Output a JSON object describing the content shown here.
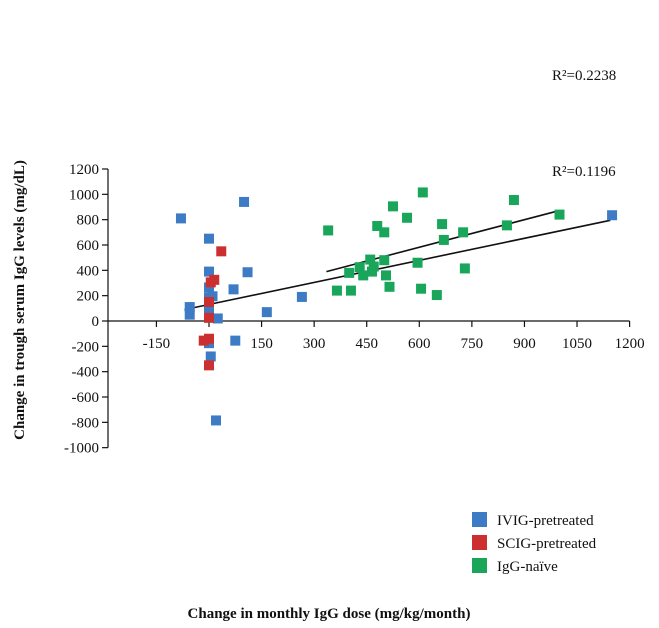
{
  "chart_data": {
    "type": "scatter",
    "xlabel": "Change in monthly IgG dose (mg/kg/month)",
    "ylabel": "Change in trough serum IgG levels (mg/dL)",
    "xlim": [
      -250,
      1200
    ],
    "ylim": [
      -1000,
      1200
    ],
    "x_ticks": [
      -150,
      0,
      150,
      300,
      450,
      600,
      750,
      900,
      1050,
      1200
    ],
    "y_ticks": [
      -1000,
      -800,
      -600,
      -400,
      -200,
      0,
      200,
      400,
      600,
      800,
      1000,
      1200
    ],
    "legend_position": "bottom-right",
    "series": [
      {
        "name": "IVIG-pretreated",
        "color": "#3d7cc4",
        "points": [
          [
            -80,
            810
          ],
          [
            100,
            940
          ],
          [
            0,
            650
          ],
          [
            110,
            385
          ],
          [
            70,
            250
          ],
          [
            0,
            390
          ],
          [
            0,
            265
          ],
          [
            10,
            195
          ],
          [
            0,
            185
          ],
          [
            -55,
            110
          ],
          [
            -55,
            50
          ],
          [
            0,
            80
          ],
          [
            25,
            20
          ],
          [
            165,
            70
          ],
          [
            265,
            190
          ],
          [
            1150,
            835
          ],
          [
            75,
            -155
          ],
          [
            0,
            -175
          ],
          [
            5,
            -280
          ],
          [
            20,
            -785
          ]
        ]
      },
      {
        "name": "SCIG-pretreated",
        "color": "#cc2f2f",
        "points": [
          [
            35,
            550
          ],
          [
            15,
            325
          ],
          [
            5,
            305
          ],
          [
            0,
            150
          ],
          [
            0,
            25
          ],
          [
            0,
            -140
          ],
          [
            -15,
            -155
          ],
          [
            0,
            -350
          ]
        ]
      },
      {
        "name": "IgG-naïve",
        "color": "#19a55a",
        "points": [
          [
            610,
            1015
          ],
          [
            525,
            905
          ],
          [
            870,
            955
          ],
          [
            565,
            815
          ],
          [
            1000,
            840
          ],
          [
            340,
            715
          ],
          [
            480,
            750
          ],
          [
            500,
            700
          ],
          [
            665,
            765
          ],
          [
            725,
            700
          ],
          [
            850,
            755
          ],
          [
            670,
            640
          ],
          [
            460,
            485
          ],
          [
            500,
            480
          ],
          [
            470,
            430
          ],
          [
            430,
            425
          ],
          [
            400,
            380
          ],
          [
            465,
            390
          ],
          [
            440,
            360
          ],
          [
            505,
            360
          ],
          [
            595,
            460
          ],
          [
            730,
            415
          ],
          [
            365,
            240
          ],
          [
            405,
            240
          ],
          [
            515,
            270
          ],
          [
            605,
            255
          ],
          [
            650,
            205
          ]
        ]
      }
    ],
    "regression_lines": [
      {
        "label": "R²=0.2238",
        "x": [
          335,
          990
        ],
        "y": [
          390,
          865
        ]
      },
      {
        "label": "R²=0.1196",
        "x": [
          -70,
          1145
        ],
        "y": [
          90,
          795
        ]
      }
    ]
  }
}
